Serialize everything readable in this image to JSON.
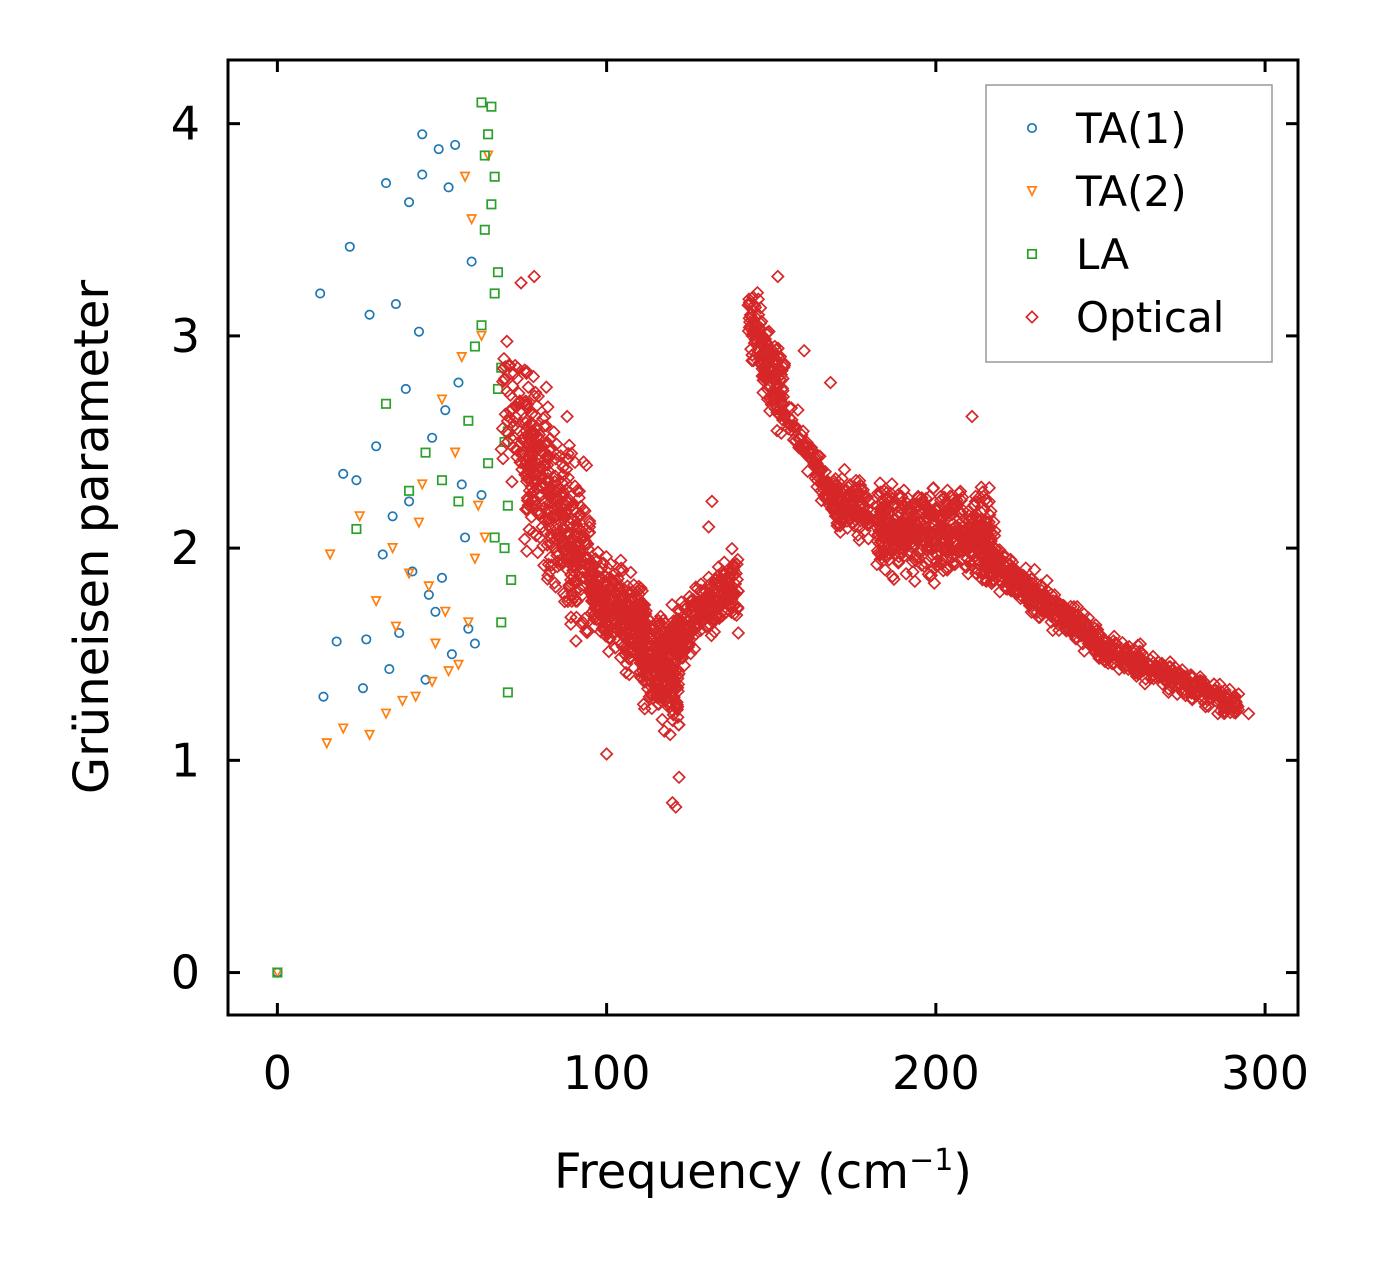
{
  "chart_data": {
    "type": "scatter",
    "xlabel": "Frequency (cm",
    "xlabel_sup": "−1",
    "xlabel_end": ")",
    "ylabel": "Grüneisen parameter",
    "xlim": [
      -15,
      310
    ],
    "ylim": [
      -0.2,
      4.3
    ],
    "xticks": [
      0,
      100,
      200,
      300
    ],
    "yticks": [
      0,
      1,
      2,
      3,
      4
    ],
    "legend_position": "top-right",
    "series": [
      {
        "name": "TA(1)",
        "marker": "circle",
        "color": "#1f77b4",
        "x": [
          0,
          13,
          22,
          33,
          36,
          40,
          44,
          49,
          54,
          20,
          28,
          35,
          43,
          51,
          30,
          39,
          47,
          56,
          24,
          32,
          41,
          50,
          58,
          18,
          27,
          37,
          45,
          53,
          60,
          14,
          26,
          34,
          48,
          57,
          62,
          44,
          52,
          40,
          55,
          59,
          46
        ],
        "y": [
          0,
          3.2,
          3.42,
          3.72,
          3.15,
          3.63,
          3.76,
          3.88,
          3.9,
          2.35,
          3.1,
          2.15,
          3.02,
          2.65,
          2.48,
          2.75,
          2.52,
          2.3,
          2.32,
          1.97,
          1.89,
          1.86,
          1.62,
          1.56,
          1.57,
          1.6,
          1.38,
          1.5,
          1.55,
          1.3,
          1.34,
          1.43,
          1.7,
          2.05,
          2.25,
          3.95,
          3.7,
          2.22,
          2.78,
          3.35,
          1.78
        ]
      },
      {
        "name": "TA(2)",
        "marker": "triangle-down",
        "color": "#ff7f0e",
        "x": [
          0,
          15,
          20,
          28,
          33,
          38,
          42,
          47,
          52,
          58,
          60,
          63,
          16,
          25,
          35,
          44,
          50,
          56,
          62,
          30,
          40,
          48,
          55,
          61,
          36,
          46,
          54,
          59,
          64,
          43,
          51,
          57
        ],
        "y": [
          0,
          1.08,
          1.15,
          1.12,
          1.22,
          1.28,
          1.3,
          1.37,
          1.42,
          1.65,
          1.95,
          2.05,
          1.97,
          2.15,
          2.0,
          2.3,
          2.7,
          2.9,
          3.0,
          1.75,
          1.88,
          1.55,
          1.45,
          2.2,
          1.63,
          1.82,
          2.45,
          3.55,
          3.85,
          2.12,
          1.7,
          3.75
        ]
      },
      {
        "name": "LA",
        "marker": "square",
        "color": "#2ca02c",
        "x": [
          0,
          24,
          33,
          40,
          45,
          50,
          55,
          58,
          60,
          62,
          63,
          64,
          65,
          66,
          67,
          68,
          69,
          70,
          71,
          64,
          66,
          68,
          70,
          65,
          67,
          69,
          63,
          62,
          66,
          70
        ],
        "y": [
          0,
          2.09,
          2.68,
          2.27,
          2.45,
          2.32,
          2.22,
          2.6,
          2.95,
          3.05,
          3.5,
          3.95,
          4.08,
          3.75,
          3.3,
          2.85,
          2.5,
          2.2,
          1.85,
          2.4,
          2.05,
          1.65,
          1.32,
          3.62,
          2.75,
          2.0,
          3.85,
          4.1,
          3.2,
          2.55
        ]
      },
      {
        "name": "Optical",
        "marker": "diamond",
        "color": "#d62728",
        "bands": [
          {
            "x0": 68,
            "x1": 78,
            "center0": 2.75,
            "center1": 2.4,
            "spread": 0.45,
            "n": 70
          },
          {
            "x0": 75,
            "x1": 95,
            "center0": 2.5,
            "center1": 1.85,
            "spread": 0.55,
            "n": 380
          },
          {
            "x0": 95,
            "x1": 112,
            "center0": 1.8,
            "center1": 1.6,
            "spread": 0.3,
            "n": 340
          },
          {
            "x0": 110,
            "x1": 122,
            "center0": 1.55,
            "center1": 1.3,
            "spread": 0.32,
            "n": 200
          },
          {
            "x0": 115,
            "x1": 140,
            "center0": 1.5,
            "center1": 1.85,
            "spread": 0.22,
            "n": 300
          },
          {
            "x0": 143,
            "x1": 154,
            "center0": 3.1,
            "center1": 2.7,
            "spread": 0.26,
            "n": 170
          },
          {
            "x0": 155,
            "x1": 172,
            "center0": 2.6,
            "center1": 2.15,
            "spread": 0.14,
            "n": 140
          },
          {
            "x0": 168,
            "x1": 180,
            "center0": 2.25,
            "center1": 2.15,
            "spread": 0.18,
            "n": 120
          },
          {
            "x0": 182,
            "x1": 218,
            "center0": 2.1,
            "center1": 2.05,
            "spread": 0.28,
            "n": 560
          },
          {
            "x0": 215,
            "x1": 250,
            "center0": 1.95,
            "center1": 1.55,
            "spread": 0.13,
            "n": 380
          },
          {
            "x0": 248,
            "x1": 292,
            "center0": 1.55,
            "center1": 1.25,
            "spread": 0.1,
            "n": 320
          }
        ],
        "outliers": {
          "x": [
            120,
            121,
            100,
            122,
            132,
            131,
            152,
            160,
            168,
            211,
            295,
            74,
            78,
            88,
            140
          ],
          "y": [
            0.8,
            0.78,
            1.03,
            0.92,
            2.22,
            2.1,
            3.28,
            2.93,
            2.78,
            2.62,
            1.22,
            3.25,
            3.28,
            2.62,
            1.6
          ]
        }
      }
    ]
  }
}
